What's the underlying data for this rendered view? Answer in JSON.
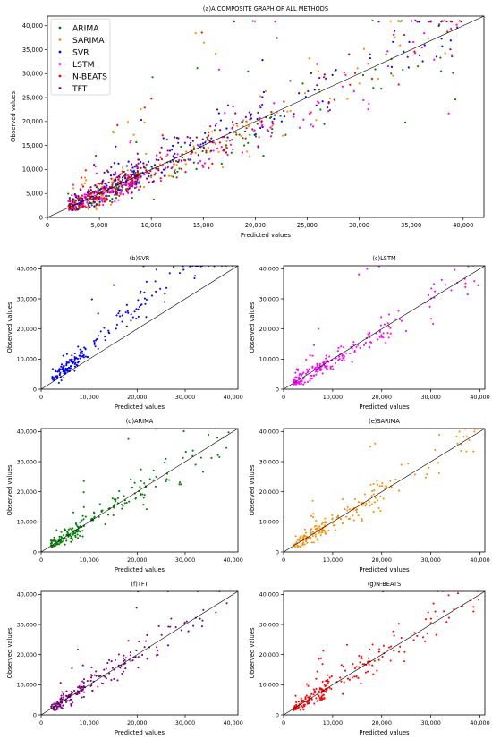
{
  "chart_data": [
    {
      "type": "scatter",
      "title": "(a)A COMPOSITE GRAPH OF ALL METHODS",
      "xlabel": "Predicted values",
      "ylabel": "Observed values",
      "xlim": [
        0,
        42000
      ],
      "ylim": [
        0,
        42000
      ],
      "xticks": [
        "0",
        "5,000",
        "10,000",
        "15,000",
        "20,000",
        "25,000",
        "30,000",
        "35,000",
        "40,000"
      ],
      "yticks": [
        "0",
        "5,000",
        "10,000",
        "15,000",
        "20,000",
        "25,000",
        "30,000",
        "35,000",
        "40,000"
      ],
      "grid": false,
      "legend_position": "top-left",
      "reference_line": "y = x",
      "series": [
        {
          "name": "ARIMA",
          "color": "#008000",
          "seed": 11
        },
        {
          "name": "SARIMA",
          "color": "#ff8c00",
          "seed": 23
        },
        {
          "name": "SVR",
          "color": "#0000ff",
          "seed": 37
        },
        {
          "name": "LSTM",
          "color": "#ff00ff",
          "seed": 41
        },
        {
          "name": "N-BEATS",
          "color": "#ff0000",
          "seed": 59
        },
        {
          "name": "TFT",
          "color": "#800080",
          "seed": 67
        }
      ]
    },
    {
      "type": "scatter",
      "title": "(b)SVR",
      "xlabel": "Predicted values",
      "ylabel": "Observed values",
      "xlim": [
        0,
        41000
      ],
      "ylim": [
        0,
        41000
      ],
      "xticks": [
        "0",
        "10,000",
        "20,000",
        "30,000",
        "40,000"
      ],
      "yticks": [
        "0",
        "10,000",
        "20,000",
        "30,000",
        "40,000"
      ],
      "reference_line": "y = x",
      "series": [
        {
          "color": "#0000ff",
          "seed": 101,
          "bias": 1.35
        }
      ]
    },
    {
      "type": "scatter",
      "title": "(c)LSTM",
      "xlabel": "Predicted values",
      "ylabel": "Observed values",
      "xlim": [
        0,
        41000
      ],
      "ylim": [
        0,
        41000
      ],
      "xticks": [
        "0",
        "10,000",
        "20,000",
        "30,000",
        "40,000"
      ],
      "yticks": [
        "0",
        "10,000",
        "20,000",
        "30,000",
        "40,000"
      ],
      "reference_line": "y = x",
      "series": [
        {
          "color": "#ff00ff",
          "seed": 202,
          "bias": 0.95
        }
      ]
    },
    {
      "type": "scatter",
      "title": "(d)ARIMA",
      "xlabel": "Predicted values",
      "ylabel": "Observed values",
      "xlim": [
        0,
        41000
      ],
      "ylim": [
        0,
        41000
      ],
      "xticks": [
        "0",
        "10,000",
        "20,000",
        "30,000",
        "40,000"
      ],
      "yticks": [
        "0",
        "10,000",
        "20,000",
        "30,000",
        "40,000"
      ],
      "reference_line": "y = x",
      "series": [
        {
          "color": "#008000",
          "seed": 303,
          "bias": 1.0
        }
      ]
    },
    {
      "type": "scatter",
      "title": "(e)SARIMA",
      "xlabel": "Predicted values",
      "ylabel": "Observed values",
      "xlim": [
        0,
        41000
      ],
      "ylim": [
        0,
        41000
      ],
      "xticks": [
        "0",
        "10,000",
        "20,000",
        "30,000",
        "40,000"
      ],
      "yticks": [
        "0",
        "10,000",
        "20,000",
        "30,000",
        "40,000"
      ],
      "reference_line": "y = x",
      "series": [
        {
          "color": "#ff8c00",
          "seed": 404,
          "bias": 0.98
        }
      ]
    },
    {
      "type": "scatter",
      "title": "(f)TFT",
      "xlabel": "Predicted values",
      "ylabel": "Observed values",
      "xlim": [
        0,
        41000
      ],
      "ylim": [
        0,
        41000
      ],
      "xticks": [
        "0",
        "10,000",
        "20,000",
        "30,000",
        "40,000"
      ],
      "yticks": [
        "0",
        "10,000",
        "20,000",
        "30,000",
        "40,000"
      ],
      "reference_line": "y = x",
      "series": [
        {
          "color": "#800080",
          "seed": 505,
          "bias": 1.0
        }
      ]
    },
    {
      "type": "scatter",
      "title": "(g)N-BEATS",
      "xlabel": "Predicted values",
      "ylabel": "Observed values",
      "xlim": [
        0,
        41000
      ],
      "ylim": [
        0,
        41000
      ],
      "xticks": [
        "0",
        "10,000",
        "20,000",
        "30,000",
        "40,000"
      ],
      "yticks": [
        "0",
        "10,000",
        "20,000",
        "30,000",
        "40,000"
      ],
      "reference_line": "y = x",
      "series": [
        {
          "color": "#ff0000",
          "seed": 606,
          "bias": 1.02
        }
      ]
    }
  ]
}
